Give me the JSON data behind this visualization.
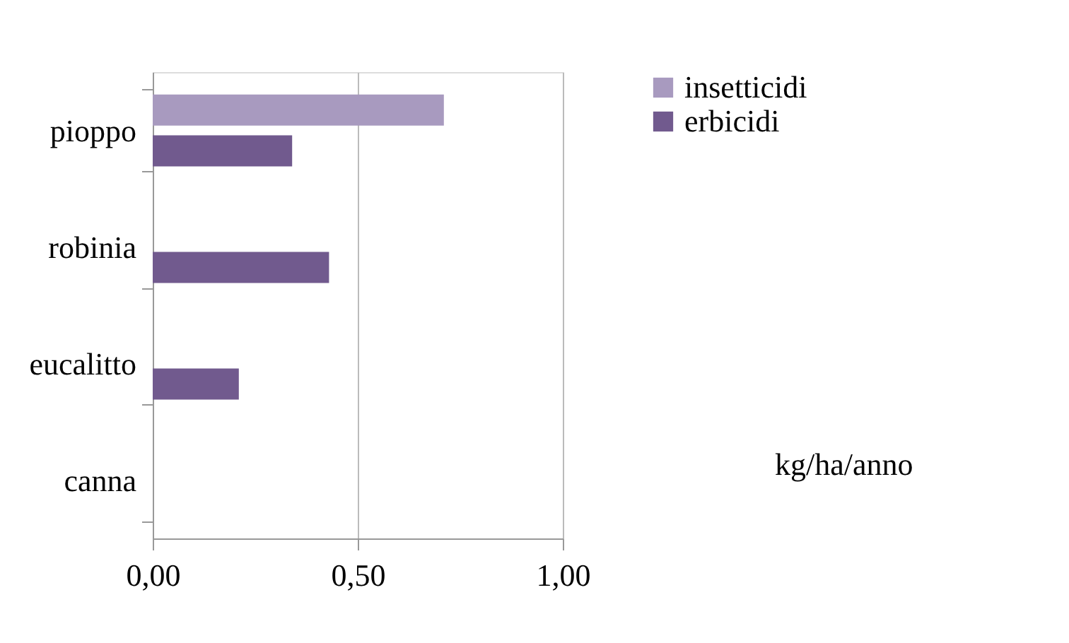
{
  "chart_data": {
    "type": "bar",
    "orientation": "horizontal",
    "categories": [
      "pioppo",
      "robinia",
      "eucalitto",
      "canna"
    ],
    "series": [
      {
        "name": "insetticidi",
        "color": "#a89abf",
        "values": [
          0.71,
          0,
          0,
          0
        ]
      },
      {
        "name": "erbicidi",
        "color": "#715a8e",
        "values": [
          0.34,
          0.43,
          0.21,
          0
        ]
      }
    ],
    "xlim": [
      0,
      1
    ],
    "xticks": [
      {
        "value": 0,
        "label": "0,00"
      },
      {
        "value": 0.5,
        "label": "0,50"
      },
      {
        "value": 1,
        "label": "1,00"
      }
    ],
    "grid": "x",
    "legend": "right",
    "annotations": [
      "kg/ha/anno"
    ]
  }
}
